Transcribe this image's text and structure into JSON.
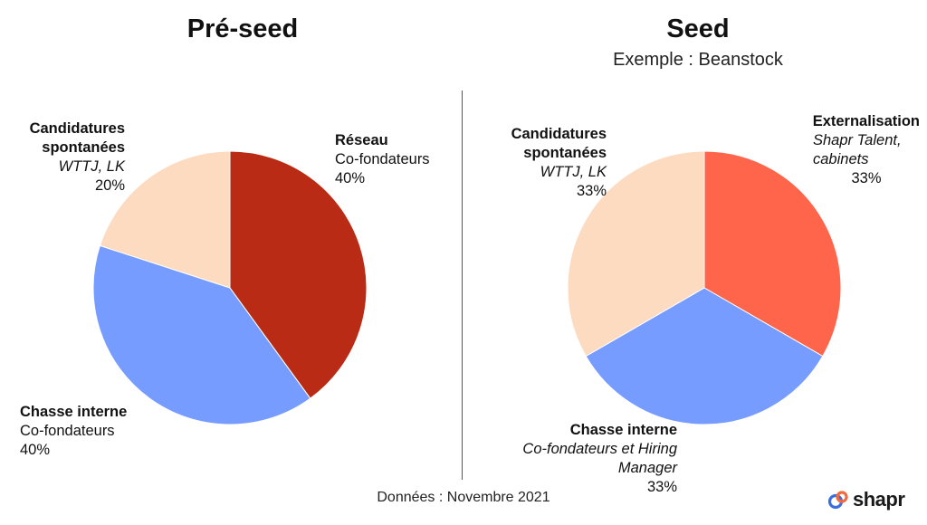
{
  "footnote": "Données : Novembre 2021",
  "brand": {
    "name": "shapr",
    "colors": {
      "blue": "#3b6fe0",
      "orange": "#f26a3d"
    }
  },
  "chart_data": [
    {
      "type": "pie",
      "title": "Pré-seed",
      "subtitle": "",
      "slices": [
        {
          "name": "Réseau",
          "detail": "Co-fondateurs",
          "value": 40,
          "label": "40%",
          "color": "#b92b14",
          "italic_detail": false
        },
        {
          "name": "Chasse interne",
          "detail": "Co-fondateurs",
          "value": 40,
          "label": "40%",
          "color": "#769cff",
          "italic_detail": false
        },
        {
          "name": "Candidatures spontanées",
          "detail": "WTTJ, LK",
          "value": 20,
          "label": "20%",
          "color": "#fddbc0",
          "italic_detail": true
        }
      ]
    },
    {
      "type": "pie",
      "title": "Seed",
      "subtitle": "Exemple : Beanstock",
      "slices": [
        {
          "name": "Externalisation",
          "detail": "Shapr Talent, cabinets",
          "value": 33,
          "label": "33%",
          "color": "#ff654a",
          "italic_detail": true
        },
        {
          "name": "Chasse interne",
          "detail": "Co-fondateurs et Hiring Manager",
          "value": 33,
          "label": "33%",
          "color": "#769cff",
          "italic_detail": true
        },
        {
          "name": "Candidatures spontanées",
          "detail": "WTTJ, LK",
          "value": 33,
          "label": "33%",
          "color": "#fddbc0",
          "italic_detail": true
        }
      ]
    }
  ]
}
